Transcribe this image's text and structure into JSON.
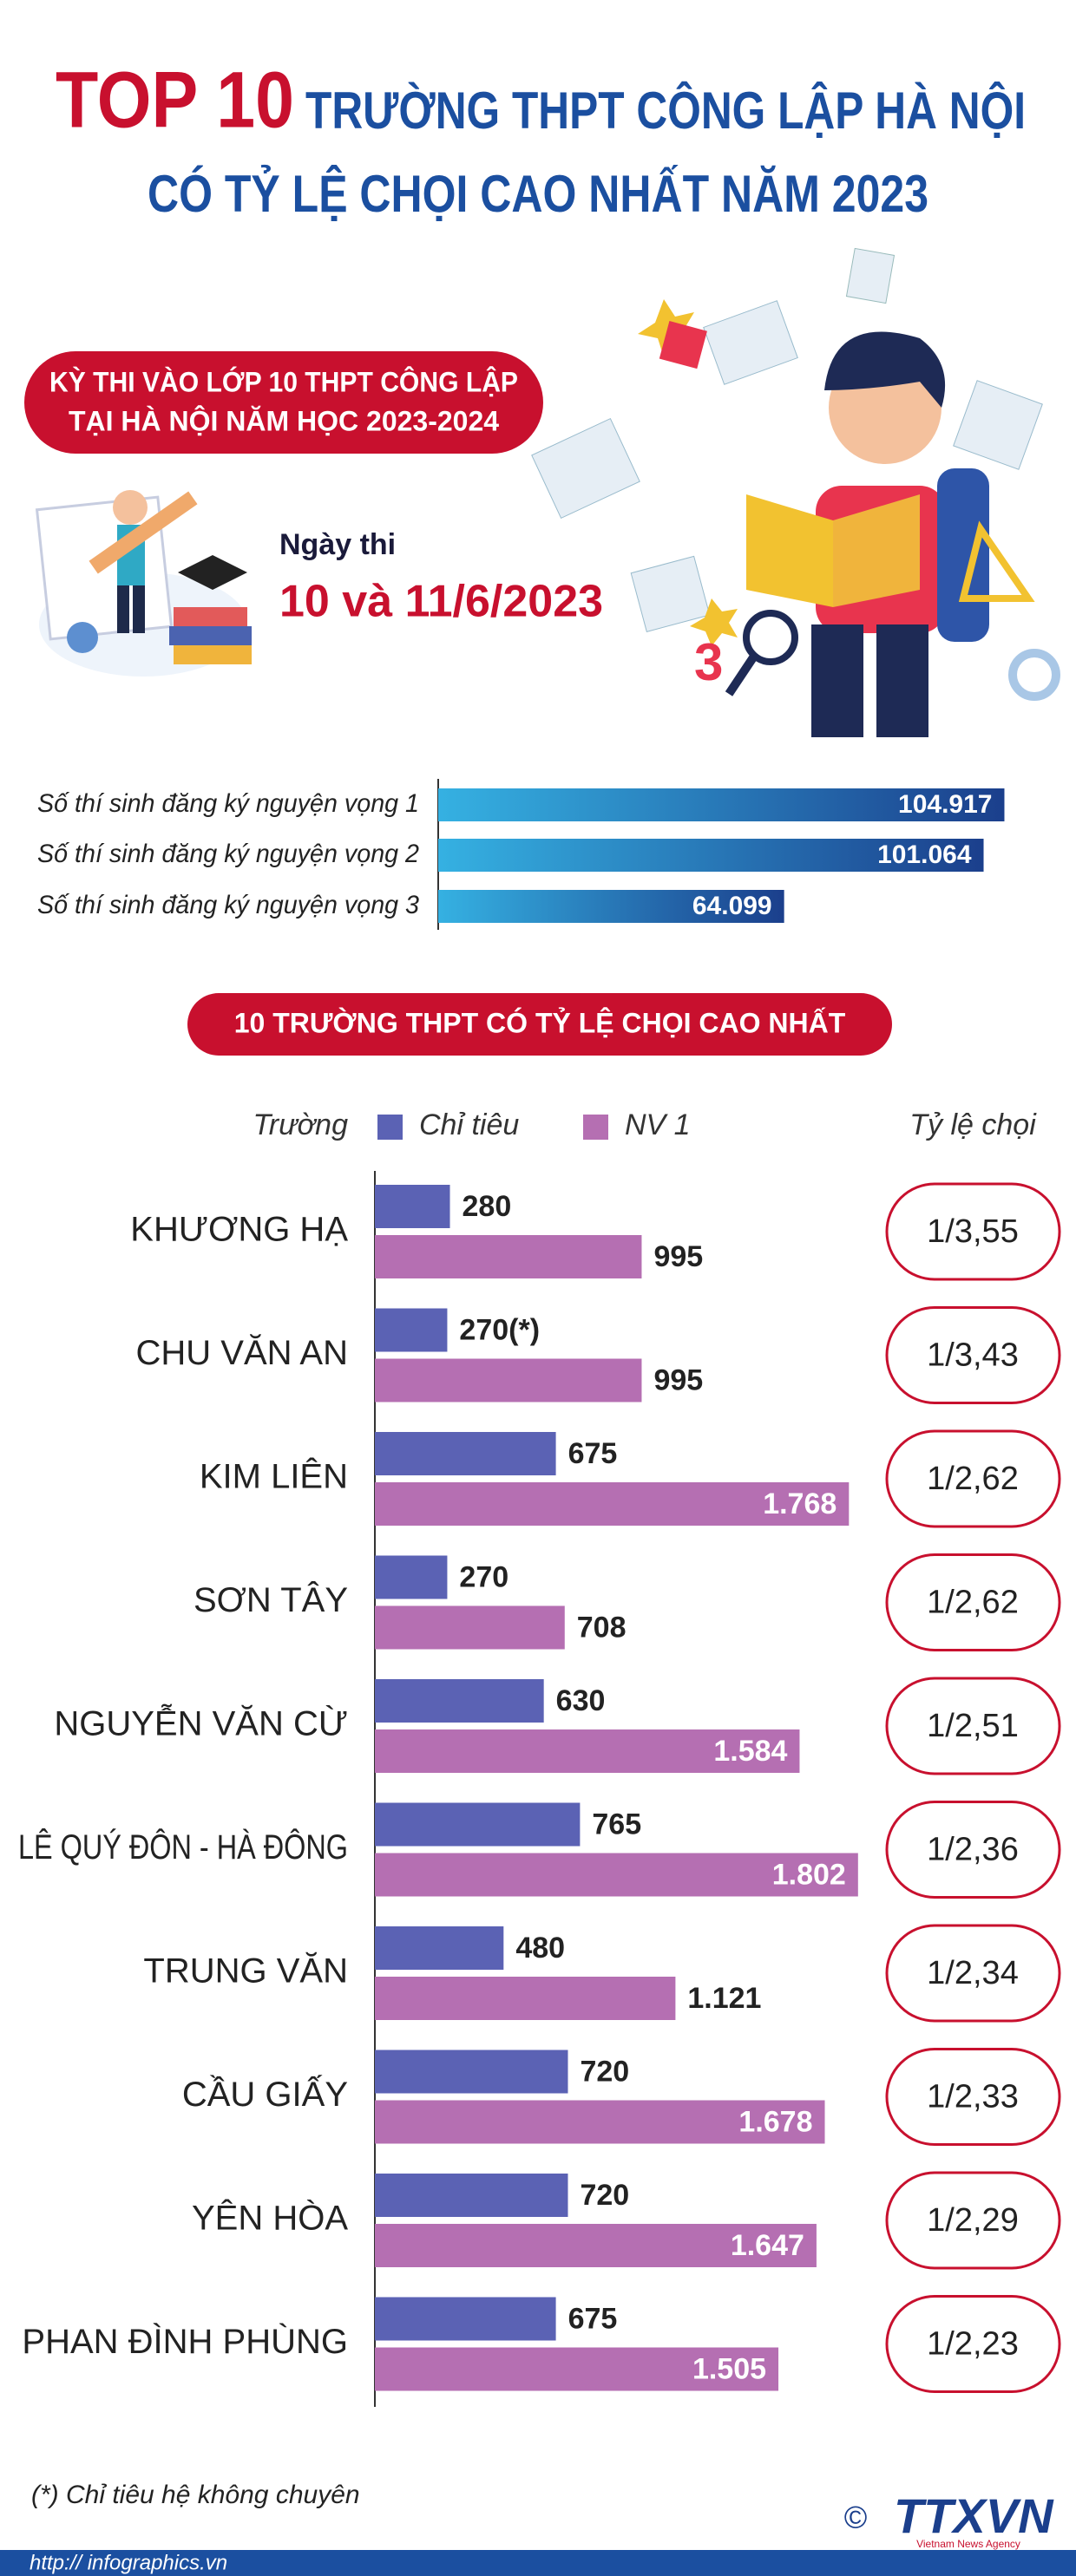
{
  "header": {
    "title_highlight": "TOP 10",
    "title_line1": "TRƯỜNG THPT CÔNG LẬP HÀ NỘI",
    "title_line2": "CÓ TỶ LỆ CHỌI CAO NHẤT NĂM 2023"
  },
  "exam": {
    "name_line1": "KỲ THI VÀO LỚP 10 THPT CÔNG LẬP",
    "name_line2": "TẠI HÀ NỘI NĂM HỌC 2023-2024",
    "date_label": "Ngày thi",
    "date": "10 và 11/6/2023"
  },
  "chart_data": [
    {
      "type": "bar",
      "orientation": "horizontal",
      "categories": [
        "Số thí sinh đăng ký nguyện vọng 1",
        "Số thí sinh đăng ký nguyện vọng 2",
        "Số thí sinh đăng ký nguyện vọng 3"
      ],
      "values": [
        104917,
        101064,
        64099
      ],
      "value_labels": [
        "104.917",
        "101.064",
        "64.099"
      ],
      "color": "#1b3f8c"
    },
    {
      "type": "grouped-bar",
      "orientation": "horizontal",
      "title": "10 TRƯỜNG THPT CÓ TỶ LỆ CHỌI CAO NHẤT",
      "category_label": "Trường",
      "categories": [
        "KHƯƠNG HẠ",
        "CHU VĂN AN",
        "KIM LIÊN",
        "SƠN TÂY",
        "NGUYỄN VĂN CỪ",
        "LÊ QUÝ ĐÔN - HÀ ĐÔNG",
        "TRUNG VĂN",
        "CẦU GIẤY",
        "YÊN HÒA",
        "PHAN ĐÌNH PHÙNG"
      ],
      "series": [
        {
          "name": "Chỉ tiêu",
          "color": "#5b62b4",
          "values": [
            280,
            270,
            675,
            270,
            630,
            765,
            480,
            720,
            720,
            675
          ],
          "value_labels": [
            "280",
            "270(*)",
            "675",
            "270",
            "630",
            "765",
            "480",
            "720",
            "720",
            "675"
          ]
        },
        {
          "name": "NV 1",
          "color": "#b56fb2",
          "values": [
            995,
            995,
            1768,
            708,
            1584,
            1802,
            1121,
            1678,
            1647,
            1505
          ],
          "value_labels": [
            "995",
            "995",
            "1.768",
            "708",
            "1.584",
            "1.802",
            "1.121",
            "1.678",
            "1.647",
            "1.505"
          ]
        }
      ],
      "ratio_label": "Tỷ lệ chọi",
      "ratios": [
        "1/3,55",
        "1/3,43",
        "1/2,62",
        "1/2,62",
        "1/2,51",
        "1/2,36",
        "1/2,34",
        "1/2,33",
        "1/2,29",
        "1/2,23"
      ]
    }
  ],
  "footnote": "(*) Chỉ tiêu hệ không chuyên",
  "footer": {
    "url": "http:// infographics.vn",
    "copyright": "©",
    "logo": "TTXVN",
    "agency": "Vietnam News Agency"
  }
}
